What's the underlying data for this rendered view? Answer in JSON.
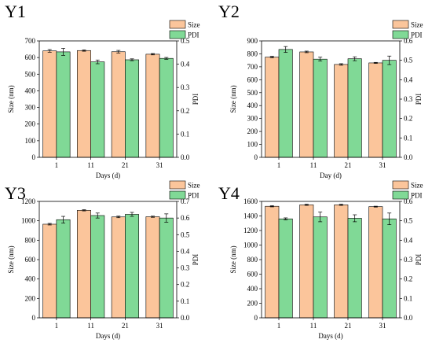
{
  "chart_data": [
    {
      "type": "bar",
      "title": "Y1",
      "categories": [
        "1",
        "11",
        "21",
        "31"
      ],
      "xlabel": "Days (d)",
      "ylabel": "Size (nm)",
      "ylim": [
        0,
        700
      ],
      "yticks": [
        "0",
        "100",
        "200",
        "300",
        "400",
        "500",
        "600",
        "700"
      ],
      "y2label": "PDI",
      "y2lim": [
        0,
        0.5
      ],
      "y2ticks": [
        "0.0",
        "0.1",
        "0.2",
        "0.3",
        "0.4",
        "0.5"
      ],
      "legend_position": "top-right",
      "series": [
        {
          "name": "Size",
          "axis": "left",
          "color": "#FBC59B",
          "values": [
            640,
            642,
            635,
            620
          ],
          "errors": [
            8,
            4,
            8,
            4
          ]
        },
        {
          "name": "PDI",
          "axis": "right",
          "color": "#80D996",
          "values": [
            0.453,
            0.41,
            0.419,
            0.425
          ],
          "errors": [
            0.015,
            0.008,
            0.004,
            0.004
          ]
        }
      ]
    },
    {
      "type": "bar",
      "title": "Y2",
      "categories": [
        "1",
        "11",
        "21",
        "31"
      ],
      "xlabel": "Day (d)",
      "ylabel": "Size (nm)",
      "ylim": [
        0,
        900
      ],
      "yticks": [
        "0",
        "100",
        "200",
        "300",
        "400",
        "500",
        "600",
        "700",
        "800",
        "900"
      ],
      "y2label": "PDI",
      "y2lim": [
        0,
        0.6
      ],
      "y2ticks": [
        "0.0",
        "0.1",
        "0.2",
        "0.3",
        "0.4",
        "0.5",
        "0.6"
      ],
      "legend_position": "top-right",
      "series": [
        {
          "name": "Size",
          "axis": "left",
          "color": "#FBC59B",
          "values": [
            775,
            815,
            718,
            730
          ],
          "errors": [
            6,
            6,
            6,
            4
          ]
        },
        {
          "name": "PDI",
          "axis": "right",
          "color": "#80D996",
          "values": [
            0.556,
            0.506,
            0.508,
            0.5
          ],
          "errors": [
            0.015,
            0.01,
            0.01,
            0.022
          ]
        }
      ]
    },
    {
      "type": "bar",
      "title": "Y3",
      "categories": [
        "1",
        "11",
        "21",
        "31"
      ],
      "xlabel": "Days (d)",
      "ylabel": "Size (nm)",
      "ylim": [
        0,
        1200
      ],
      "yticks": [
        "0",
        "200",
        "400",
        "600",
        "800",
        "1000",
        "1200"
      ],
      "y2label": "PDI",
      "y2lim": [
        0,
        0.7
      ],
      "y2ticks": [
        "0.0",
        "0.1",
        "0.2",
        "0.3",
        "0.4",
        "0.5",
        "0.6",
        "0.7"
      ],
      "legend_position": "top-right",
      "series": [
        {
          "name": "Size",
          "axis": "left",
          "color": "#FBC59B",
          "values": [
            965,
            1108,
            1040,
            1042
          ],
          "errors": [
            8,
            6,
            8,
            6
          ]
        },
        {
          "name": "PDI",
          "axis": "right",
          "color": "#80D996",
          "values": [
            0.59,
            0.615,
            0.622,
            0.6
          ],
          "errors": [
            0.02,
            0.015,
            0.012,
            0.025
          ]
        }
      ]
    },
    {
      "type": "bar",
      "title": "Y4",
      "categories": [
        "1",
        "11",
        "21",
        "31"
      ],
      "xlabel": "Days (d)",
      "ylabel": "Size (nm)",
      "ylim": [
        0,
        1600
      ],
      "yticks": [
        "0",
        "200",
        "400",
        "600",
        "800",
        "1000",
        "1200",
        "1400",
        "1600"
      ],
      "y2label": "PDI",
      "y2lim": [
        0,
        0.6
      ],
      "y2ticks": [
        "0.0",
        "0.1",
        "0.2",
        "0.3",
        "0.4",
        "0.5",
        "0.6"
      ],
      "legend_position": "top-right",
      "series": [
        {
          "name": "Size",
          "axis": "left",
          "color": "#FBC59B",
          "values": [
            1533,
            1553,
            1553,
            1528
          ],
          "errors": [
            8,
            8,
            8,
            6
          ]
        },
        {
          "name": "PDI",
          "axis": "right",
          "color": "#80D996",
          "values": [
            0.51,
            0.52,
            0.513,
            0.51
          ],
          "errors": [
            0.005,
            0.025,
            0.018,
            0.03
          ]
        }
      ]
    }
  ]
}
